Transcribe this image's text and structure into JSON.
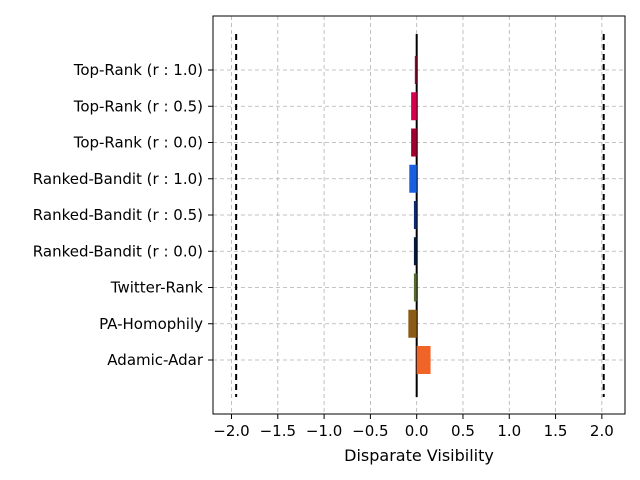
{
  "chart_data": {
    "type": "bar",
    "orientation": "horizontal",
    "title": "",
    "xlabel": "Disparate Visibility",
    "ylabel": "",
    "xlim": [
      -2.2,
      2.25
    ],
    "grid": true,
    "legend": "none",
    "x_ticks": [
      -2.0,
      -1.5,
      -1.0,
      -0.5,
      0.0,
      0.5,
      1.0,
      1.5,
      2.0
    ],
    "x_tick_labels": [
      "−2.0",
      "−1.5",
      "−1.0",
      "−0.5",
      "0.0",
      "0.5",
      "1.0",
      "1.5",
      "2.0"
    ],
    "categories": [
      "Top-Rank (r : 1.0)",
      "Top-Rank (r : 0.5)",
      "Top-Rank (r : 0.0)",
      "Ranked-Bandit (r : 1.0)",
      "Ranked-Bandit (r : 0.5)",
      "Ranked-Bandit (r : 0.0)",
      "Twitter-Rank",
      "PA-Homophily",
      "Adamic-Adar"
    ],
    "values": [
      -0.02,
      -0.06,
      -0.06,
      -0.08,
      -0.03,
      -0.03,
      -0.03,
      -0.09,
      0.15
    ],
    "colors": [
      "#8b0a2a",
      "#d4004f",
      "#a0002e",
      "#1a5fe0",
      "#0d2a6e",
      "#071a3a",
      "#556b2f",
      "#8b5a14",
      "#f06428"
    ],
    "reference_lines": [
      -1.95,
      2.02
    ],
    "zero_line": 0.0
  }
}
